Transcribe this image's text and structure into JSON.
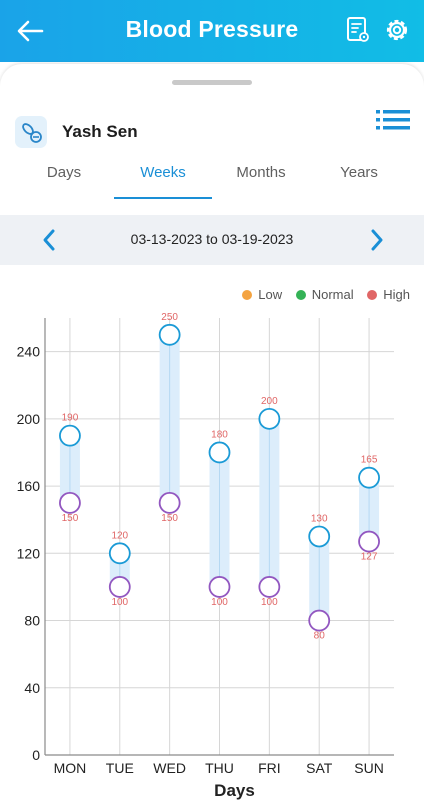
{
  "header": {
    "title": "Blood Pressure",
    "back_icon": "arrow-left-icon",
    "report_icon": "report-settings-icon",
    "settings_icon": "gear-icon"
  },
  "user": {
    "name": "Yash Sen",
    "avatar_icon": "bp-pill-icon"
  },
  "tabs": [
    {
      "label": "Days",
      "active": false
    },
    {
      "label": "Weeks",
      "active": true
    },
    {
      "label": "Months",
      "active": false
    },
    {
      "label": "Years",
      "active": false
    }
  ],
  "date_range": {
    "text": "03-13-2023 to 03-19-2023"
  },
  "legend": [
    {
      "label": "Low",
      "color": "#f4a340"
    },
    {
      "label": "Normal",
      "color": "#34b256"
    },
    {
      "label": "High",
      "color": "#e06666"
    }
  ],
  "colors": {
    "accent": "#1a8fd6",
    "high_marker": "#1a9ad6",
    "low_marker": "#9257c0",
    "range_fill": "#dcedfb",
    "value_label": "#e06666"
  },
  "chart_data": {
    "type": "range-bar",
    "categories": [
      "MON",
      "TUE",
      "WED",
      "THU",
      "FRI",
      "SAT",
      "SUN"
    ],
    "series": [
      {
        "values": [
          190,
          120,
          250,
          180,
          200,
          130,
          165
        ]
      },
      {
        "values": [
          150,
          100,
          150,
          100,
          100,
          80,
          127
        ]
      }
    ],
    "xlabel": "Days",
    "ylabel": "",
    "ylim": [
      0,
      260
    ],
    "yticks": [
      0,
      40,
      80,
      120,
      160,
      200,
      240
    ],
    "grid": true
  }
}
